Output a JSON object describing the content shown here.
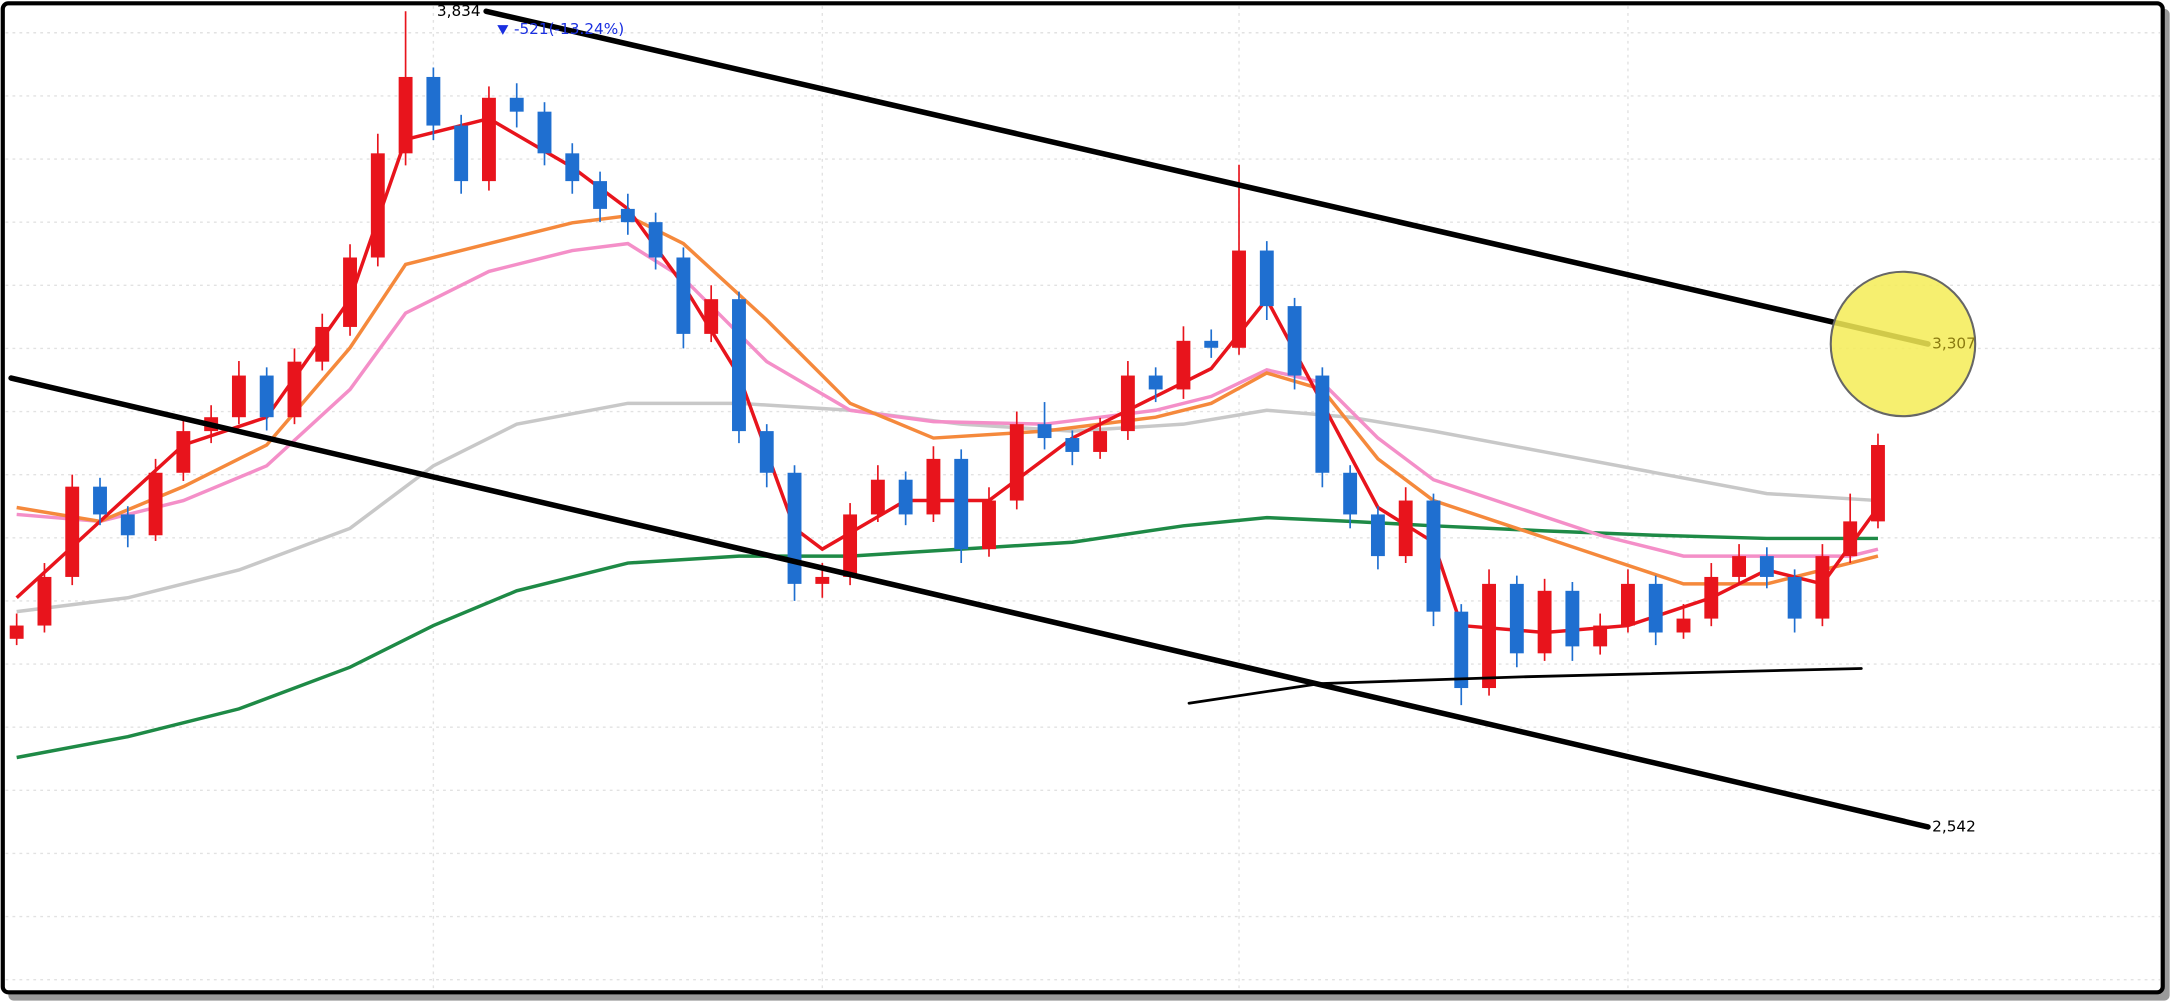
{
  "chart_data": {
    "type": "candlestick",
    "xlim": [
      -0.5,
      77
    ],
    "ylim": [
      2280,
      3840
    ],
    "yticks": [
      2300,
      2400,
      2500,
      2600,
      2700,
      2800,
      2900,
      3000,
      3100,
      3200,
      3300,
      3400,
      3500,
      3600,
      3700,
      3800
    ],
    "xticks": [
      15,
      29,
      44,
      58
    ],
    "grid": true,
    "up_color": "#e8141c",
    "down_color": "#1f6fd0",
    "open": [
      2840,
      2861,
      2938,
      3081,
      3037,
      3004,
      3103,
      3169,
      3191,
      3257,
      3191,
      3279,
      3334,
      3444,
      3609,
      3730,
      3653,
      3565,
      3697,
      3675,
      3609,
      3565,
      3521,
      3500,
      3444,
      3323,
      3378,
      3169,
      3103,
      2927,
      2938,
      3037,
      3092,
      3037,
      3125,
      2982,
      3059,
      3180,
      3158,
      3136,
      3169,
      3257,
      3235,
      3312,
      3301,
      3455,
      3367,
      3257,
      3103,
      3037,
      2971,
      3059,
      2883,
      2762,
      2927,
      2817,
      2916,
      2828,
      2861,
      2927,
      2850,
      2872,
      2938,
      2971,
      2938,
      2872,
      2971,
      3026
    ],
    "high": [
      2880,
      2960,
      3100,
      3095,
      3050,
      3125,
      3190,
      3210,
      3280,
      3270,
      3300,
      3355,
      3465,
      3640,
      3834,
      3745,
      3670,
      3715,
      3720,
      3690,
      3625,
      3580,
      3545,
      3515,
      3460,
      3400,
      3390,
      3180,
      3115,
      2960,
      3055,
      3115,
      3105,
      3145,
      3140,
      3080,
      3200,
      3215,
      3170,
      3190,
      3280,
      3270,
      3335,
      3330,
      3591,
      3470,
      3380,
      3270,
      3115,
      3050,
      3080,
      3070,
      2895,
      2950,
      2940,
      2935,
      2930,
      2880,
      2950,
      2940,
      2895,
      2960,
      2990,
      2985,
      2950,
      2990,
      3070,
      3165
    ],
    "low": [
      2830,
      2850,
      2925,
      3020,
      2985,
      2995,
      3090,
      3150,
      3180,
      3170,
      3180,
      3265,
      3320,
      3430,
      3590,
      3630,
      3545,
      3550,
      3650,
      3590,
      3545,
      3500,
      3480,
      3425,
      3300,
      3310,
      3150,
      3080,
      2900,
      2905,
      2925,
      3025,
      3020,
      3025,
      2960,
      2970,
      3045,
      3140,
      3115,
      3125,
      3155,
      3215,
      3220,
      3285,
      3290,
      3345,
      3235,
      3080,
      3015,
      2950,
      2960,
      2860,
      2735,
      2750,
      2795,
      2805,
      2805,
      2815,
      2850,
      2830,
      2840,
      2860,
      2925,
      2920,
      2850,
      2860,
      2960,
      3015
    ],
    "close": [
      2861,
      2938,
      3081,
      3037,
      3004,
      3103,
      3169,
      3191,
      3257,
      3191,
      3279,
      3334,
      3444,
      3609,
      3730,
      3653,
      3565,
      3697,
      3675,
      3609,
      3565,
      3521,
      3500,
      3444,
      3323,
      3378,
      3169,
      3103,
      2927,
      2938,
      3037,
      3092,
      3037,
      3125,
      2982,
      3059,
      3180,
      3158,
      3136,
      3169,
      3257,
      3235,
      3312,
      3301,
      3455,
      3367,
      3257,
      3103,
      3037,
      2971,
      3059,
      2883,
      2762,
      2927,
      2817,
      2916,
      2828,
      2861,
      2927,
      2850,
      2872,
      2938,
      2971,
      2938,
      2872,
      2971,
      3026,
      3147
    ],
    "series": [
      {
        "color": "#c8c8c8",
        "x": [
          0,
          4,
          8,
          12,
          15,
          18,
          22,
          26,
          30,
          34,
          38,
          42,
          45,
          48,
          51,
          55,
          59,
          63,
          67
        ],
        "values": [
          2883,
          2905,
          2949,
          3015,
          3114,
          3180,
          3213,
          3213,
          3202,
          3180,
          3169,
          3180,
          3202,
          3191,
          3169,
          3136,
          3103,
          3070,
          3059
        ]
      },
      {
        "color": "#1e8a46",
        "x": [
          0,
          4,
          8,
          12,
          15,
          18,
          22,
          26,
          30,
          34,
          38,
          42,
          45,
          48,
          51,
          55,
          59,
          63,
          67
        ],
        "values": [
          2652,
          2685,
          2729,
          2795,
          2861,
          2916,
          2960,
          2971,
          2971,
          2982,
          2993,
          3019,
          3032,
          3026,
          3019,
          3011,
          3004,
          2999,
          2999
        ]
      },
      {
        "color": "#f48fc8",
        "x": [
          0,
          3,
          6,
          9,
          12,
          14,
          17,
          20,
          22,
          24,
          27,
          30,
          33,
          37,
          41,
          43,
          45,
          47,
          49,
          51,
          54,
          57,
          60,
          63,
          66,
          67
        ],
        "values": [
          3037,
          3026,
          3059,
          3114,
          3235,
          3356,
          3422,
          3455,
          3466,
          3411,
          3279,
          3202,
          3184,
          3180,
          3202,
          3224,
          3266,
          3246,
          3158,
          3092,
          3048,
          3004,
          2971,
          2971,
          2971,
          2982
        ]
      },
      {
        "color": "#f5893c",
        "x": [
          0,
          3,
          6,
          9,
          12,
          14,
          17,
          20,
          22,
          24,
          27,
          30,
          33,
          37,
          41,
          43,
          45,
          47,
          49,
          51,
          54,
          57,
          60,
          63,
          66,
          67
        ],
        "values": [
          3048,
          3026,
          3081,
          3147,
          3301,
          3433,
          3466,
          3499,
          3510,
          3466,
          3345,
          3213,
          3158,
          3169,
          3191,
          3213,
          3261,
          3235,
          3125,
          3059,
          3015,
          2971,
          2927,
          2927,
          2960,
          2971
        ]
      },
      {
        "color": "#e8141c",
        "x": [
          0,
          3,
          6,
          9,
          12,
          14,
          17,
          20,
          22,
          24,
          26,
          28,
          29,
          32,
          35,
          38,
          41,
          43,
          45,
          47,
          49,
          51,
          52,
          55,
          58,
          61,
          63,
          65,
          67
        ],
        "values": [
          2905,
          3026,
          3147,
          3191,
          3378,
          3631,
          3664,
          3587,
          3521,
          3400,
          3257,
          3015,
          2982,
          3059,
          3059,
          3158,
          3224,
          3268,
          3378,
          3213,
          3048,
          2993,
          2861,
          2850,
          2861,
          2905,
          2949,
          2927,
          3048
        ]
      }
    ],
    "trendlines": [
      {
        "x": [
          16.9,
          68.8
        ],
        "values": [
          3834,
          3307
        ],
        "labels": [
          "3,834",
          "3,307"
        ],
        "width": 4
      },
      {
        "x": [
          -0.2,
          68.8
        ],
        "values": [
          3253,
          2542
        ],
        "labels": [
          null,
          "2,542"
        ],
        "width": 4
      },
      {
        "x": [
          42.2,
          46.9,
          54.4,
          66.4
        ],
        "values": [
          2738,
          2769,
          2780,
          2793
        ],
        "labels": [
          null,
          null,
          null,
          null
        ],
        "width": 2
      }
    ],
    "annotation": "-521(-13.24%)"
  }
}
